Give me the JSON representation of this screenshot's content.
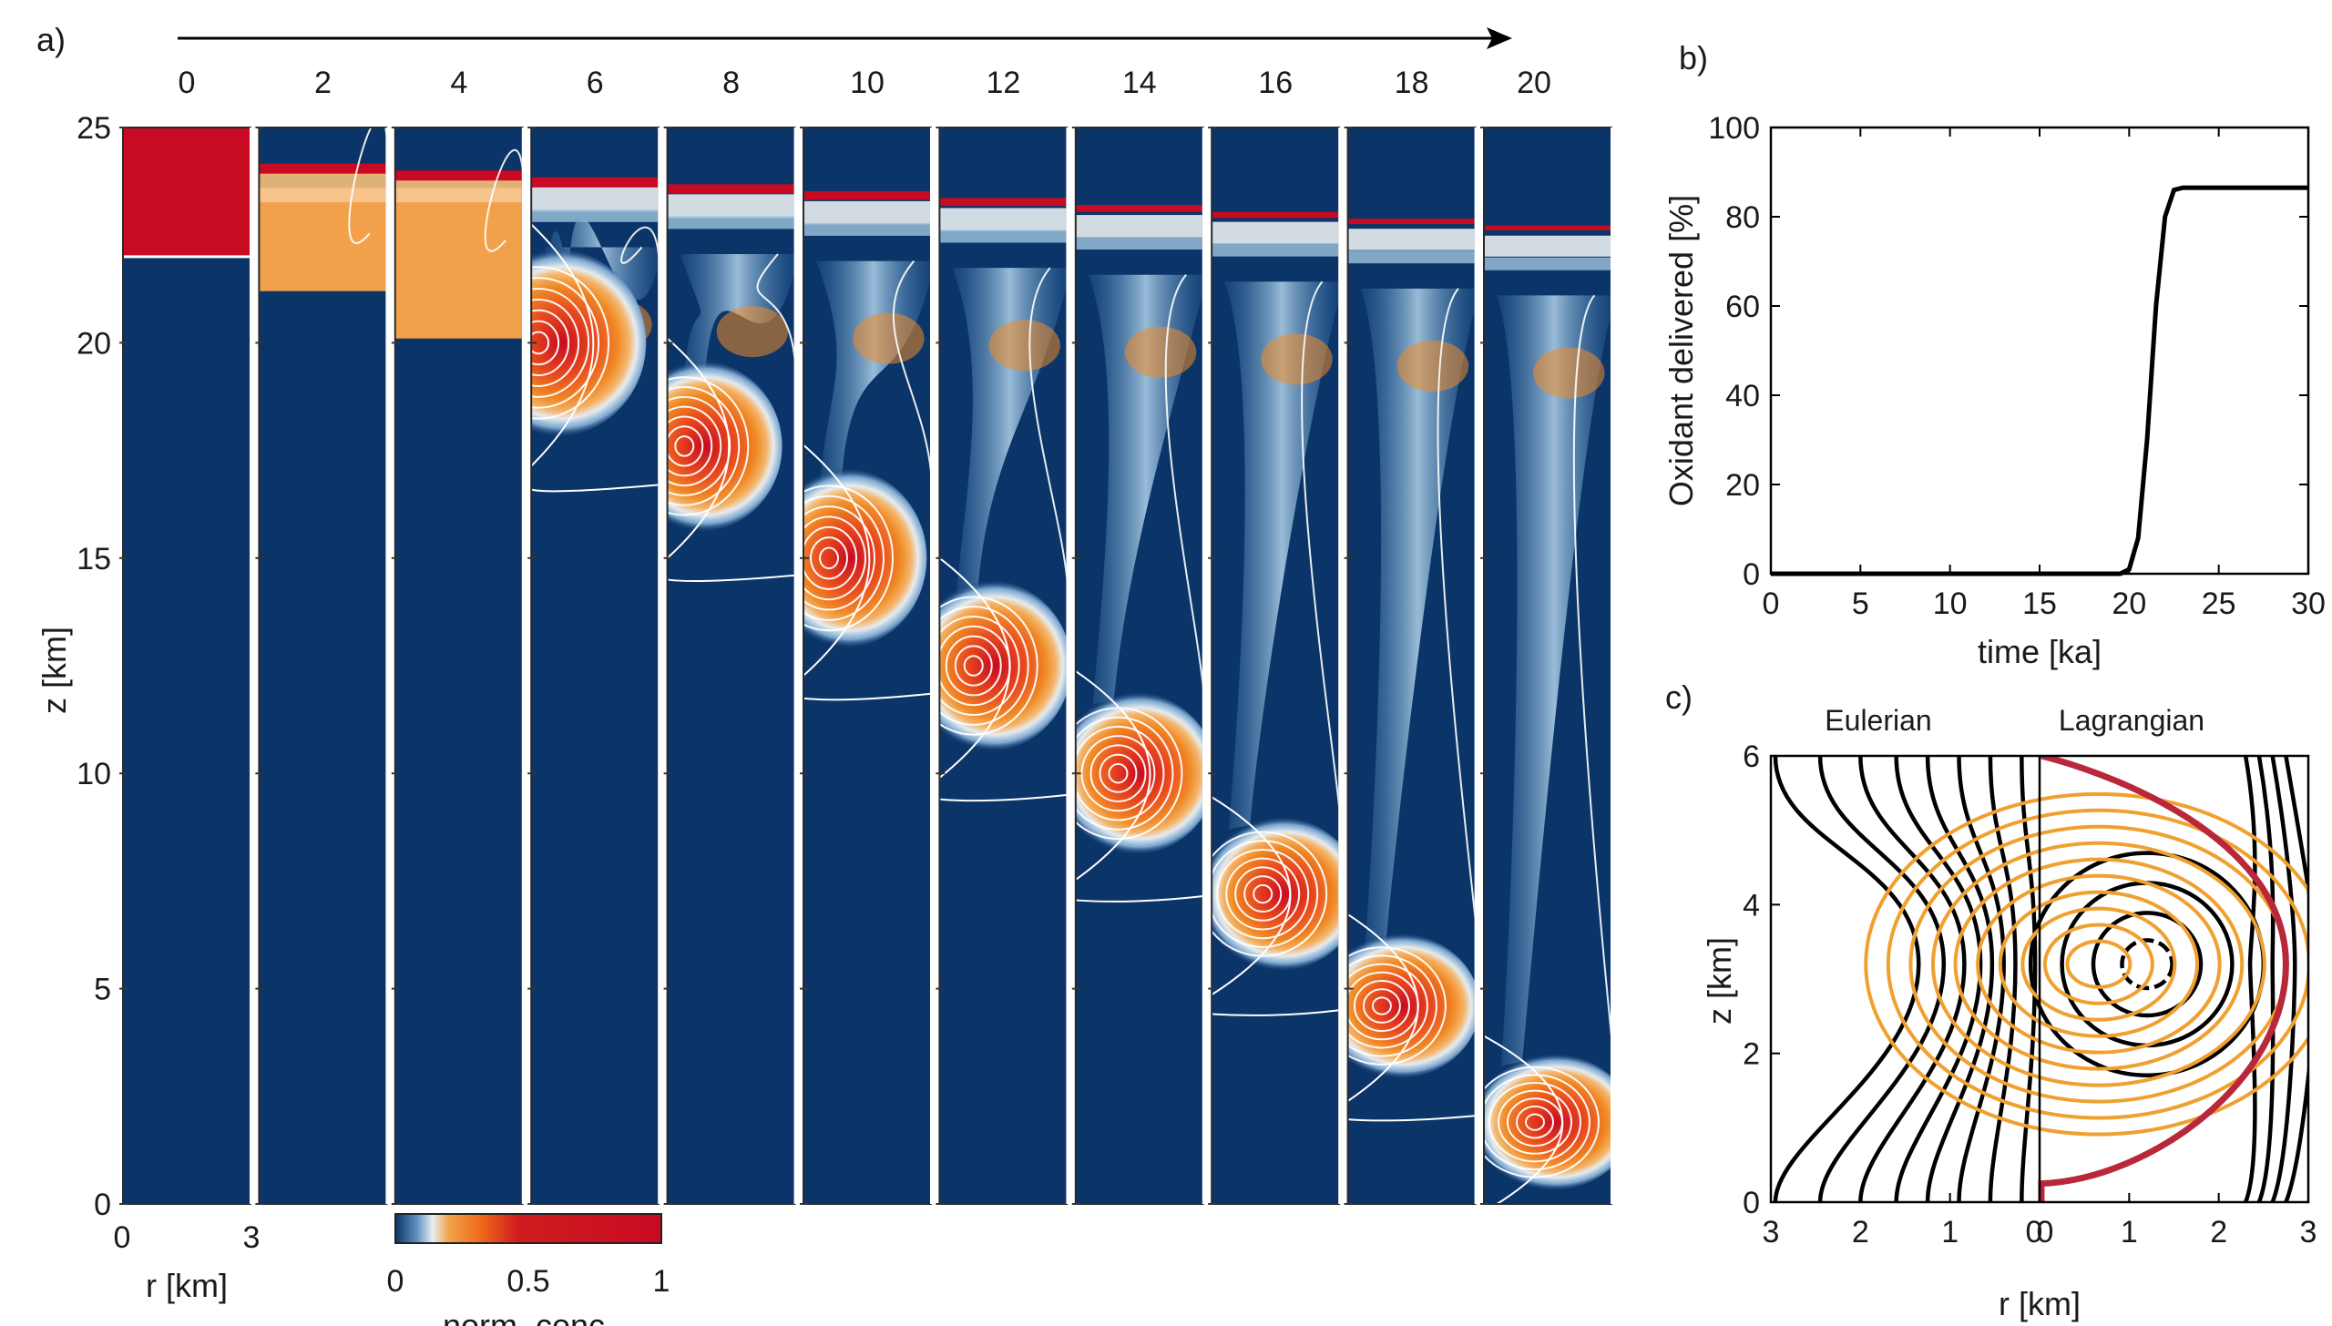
{
  "panel_a": {
    "label": "a)",
    "ylabel": "z [km]",
    "xlabel": "r [km]",
    "x_ticks": [
      "0",
      "3"
    ],
    "time_labels": [
      "0",
      "2",
      "4",
      "6",
      "8",
      "10",
      "12",
      "14",
      "16",
      "18",
      "20"
    ],
    "colorbar": {
      "label": "norm. conc.",
      "ticks": [
        "0",
        "0.5",
        "1"
      ]
    },
    "colors": {
      "background": "#0b3468",
      "mid": "#2f6aa3",
      "light": "#9fc4df",
      "pale": "#e8edf0",
      "orange": "#f08a26",
      "red": "#c80a22",
      "contour": "#ffffff"
    }
  },
  "panel_b": {
    "label": "b)"
  },
  "panel_c": {
    "label": "c)",
    "title_left": "Eulerian",
    "title_right": "Lagrangian",
    "ylabel": "z [km]",
    "xlabel": "r [km]",
    "x_ticks": [
      "3",
      "2",
      "1",
      "0",
      "0",
      "1",
      "2",
      "3"
    ],
    "y_ticks": [
      "0",
      "2",
      "4",
      "6"
    ],
    "colors": {
      "streamline": "#000000",
      "orange": "#f0a030",
      "red": "#b8283a"
    }
  },
  "chart_data": [
    {
      "type": "heatmap",
      "description_axes": "sequence of 11 snapshots of axisymmetric plume concentration",
      "ylabel": "z [km]",
      "ylim": [
        0,
        25
      ],
      "y_ticks": [
        0,
        5,
        10,
        15,
        20,
        25
      ],
      "xlabel": "r [km]",
      "xlim": [
        0,
        3
      ],
      "times": [
        0,
        2,
        4,
        6,
        8,
        10,
        12,
        14,
        16,
        18,
        20
      ],
      "blob_center_z_km": [
        23.5,
        22.8,
        22.0,
        20.0,
        17.6,
        15.0,
        12.5,
        10.0,
        7.2,
        4.6,
        1.9
      ],
      "blob_center_r_km": [
        1.5,
        1.5,
        1.5,
        0.5,
        0.7,
        0.9,
        1.1,
        1.3,
        1.5,
        1.1,
        1.5
      ],
      "blob_radius_km": [
        1.5,
        1.5,
        1.5,
        2.2,
        2.0,
        2.0,
        2.0,
        2.0,
        2.0,
        2.0,
        2.0
      ],
      "blob_half_height_km": [
        1.5,
        1.3,
        1.3,
        2.2,
        2.0,
        2.1,
        2.0,
        1.9,
        1.8,
        1.7,
        1.6
      ],
      "colorbar_range": [
        0,
        1
      ]
    },
    {
      "type": "line",
      "xlabel": "time [ka]",
      "ylabel": "Oxidant delivered [%]",
      "xlim": [
        0,
        30
      ],
      "ylim": [
        0,
        100
      ],
      "x_ticks": [
        0,
        5,
        10,
        15,
        20,
        25,
        30
      ],
      "y_ticks": [
        0,
        20,
        40,
        60,
        80,
        100
      ],
      "x": [
        0,
        5,
        10,
        15,
        19.5,
        20,
        20.5,
        21,
        21.5,
        22,
        22.5,
        23,
        25,
        30
      ],
      "y": [
        0,
        0,
        0,
        0,
        0,
        1,
        8,
        30,
        60,
        80,
        86,
        86.5,
        86.5,
        86.5
      ]
    },
    {
      "type": "line",
      "xlabel": "r [km]",
      "ylabel": "z [km]",
      "xlim": [
        -3,
        3
      ],
      "ylim": [
        0,
        6
      ],
      "vortex_center_r_km": 1.2,
      "vortex_center_z_km": 3.2,
      "orange_ellipse_half_widths_km": [
        0.35,
        0.6,
        0.85,
        1.1,
        1.35,
        1.6,
        1.85,
        2.1,
        2.35,
        2.6
      ],
      "orange_aspect": 0.88
    }
  ]
}
